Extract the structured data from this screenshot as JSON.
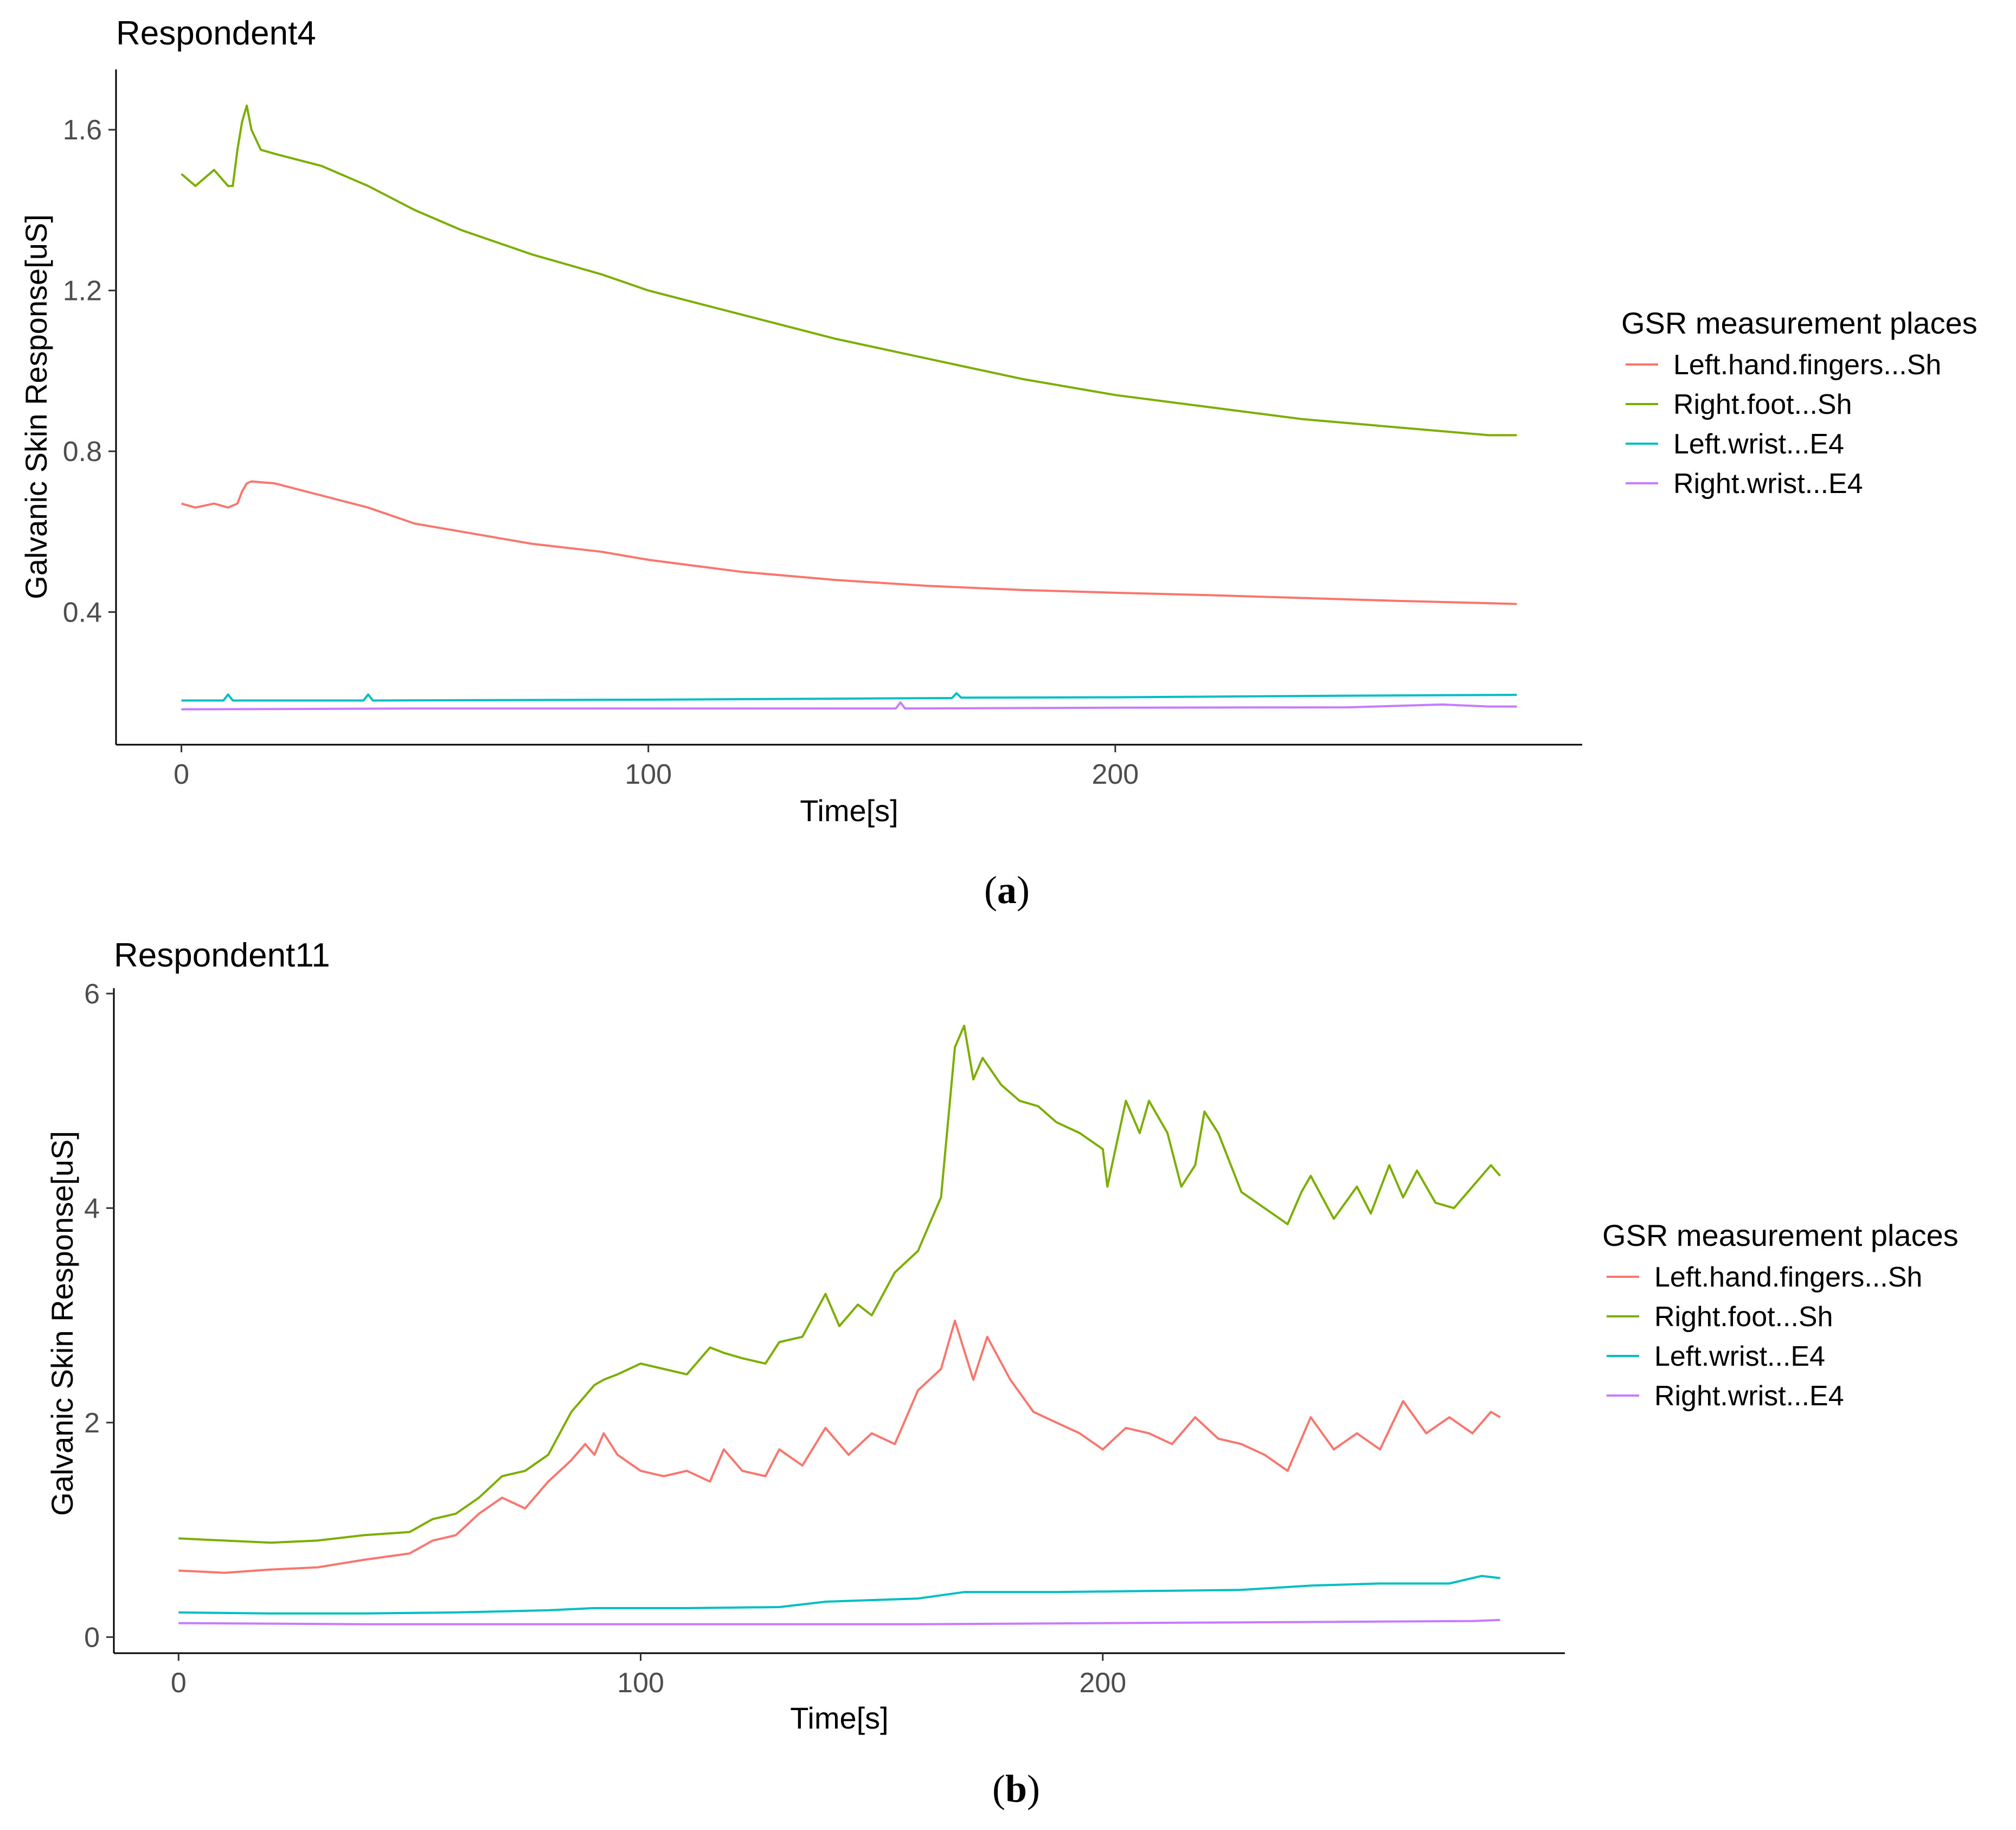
{
  "chart_data": [
    {
      "type": "line",
      "title": "Respondent4",
      "caption_letter": "a",
      "xlabel": "Time[s]",
      "ylabel": "Galvanic Skin Response[uS]",
      "xlim": [
        -14,
        300
      ],
      "ylim": [
        0.07,
        1.75
      ],
      "xticks": [
        0,
        100,
        200
      ],
      "xtick_labels": [
        "0",
        "100",
        "200"
      ],
      "yticks": [
        0.4,
        0.8,
        1.2,
        1.6
      ],
      "ytick_labels": [
        "0.4",
        "0.8",
        "1.2",
        "1.6"
      ],
      "grid": false,
      "legend_title": "GSR measurement places",
      "legend_position": "right",
      "series": [
        {
          "name": "Left.hand.fingers...Sh",
          "color": "#F8766D",
          "x": [
            0,
            3,
            7,
            10,
            12,
            13,
            14,
            15,
            20,
            30,
            40,
            50,
            60,
            75,
            90,
            100,
            120,
            140,
            160,
            180,
            200,
            220,
            240,
            260,
            280,
            286
          ],
          "y": [
            0.67,
            0.66,
            0.67,
            0.66,
            0.67,
            0.7,
            0.72,
            0.725,
            0.72,
            0.69,
            0.66,
            0.62,
            0.6,
            0.57,
            0.55,
            0.53,
            0.5,
            0.48,
            0.465,
            0.455,
            0.448,
            0.442,
            0.435,
            0.428,
            0.422,
            0.42
          ]
        },
        {
          "name": "Right.foot...Sh",
          "color": "#7CAE00",
          "x": [
            0,
            3,
            7,
            10,
            11,
            12,
            13,
            14,
            15,
            17,
            20,
            30,
            40,
            50,
            60,
            75,
            90,
            100,
            120,
            140,
            160,
            180,
            200,
            220,
            240,
            260,
            280,
            286
          ],
          "y": [
            1.49,
            1.46,
            1.5,
            1.46,
            1.46,
            1.55,
            1.62,
            1.66,
            1.6,
            1.55,
            1.54,
            1.51,
            1.46,
            1.4,
            1.35,
            1.29,
            1.24,
            1.2,
            1.14,
            1.08,
            1.03,
            0.98,
            0.94,
            0.91,
            0.88,
            0.86,
            0.84,
            0.84
          ]
        },
        {
          "name": "Left.wrist...E4",
          "color": "#00BFC4",
          "x": [
            0,
            9,
            10,
            11,
            39,
            40,
            41,
            100,
            165,
            166,
            167,
            200,
            250,
            286
          ],
          "y": [
            0.18,
            0.18,
            0.195,
            0.18,
            0.18,
            0.195,
            0.18,
            0.182,
            0.186,
            0.198,
            0.187,
            0.188,
            0.192,
            0.194
          ]
        },
        {
          "name": "Right.wrist...E4",
          "color": "#C77CFF",
          "x": [
            0,
            50,
            100,
            153,
            154,
            155,
            200,
            250,
            270,
            280,
            286
          ],
          "y": [
            0.158,
            0.16,
            0.16,
            0.16,
            0.175,
            0.16,
            0.162,
            0.163,
            0.17,
            0.165,
            0.165
          ]
        }
      ]
    },
    {
      "type": "line",
      "title": "Respondent11",
      "caption_letter": "b",
      "xlabel": "Time[s]",
      "ylabel": "Galvanic Skin Response[uS]",
      "xlim": [
        -14,
        300
      ],
      "ylim": [
        -0.15,
        6.05
      ],
      "xticks": [
        0,
        100,
        200
      ],
      "xtick_labels": [
        "0",
        "100",
        "200"
      ],
      "yticks": [
        0,
        2,
        4,
        6
      ],
      "ytick_labels": [
        "0",
        "2",
        "4",
        "6"
      ],
      "grid": false,
      "legend_title": "GSR measurement places",
      "legend_position": "right",
      "series": [
        {
          "name": "Left.hand.fingers...Sh",
          "color": "#F8766D",
          "x": [
            0,
            10,
            20,
            30,
            40,
            50,
            55,
            60,
            65,
            70,
            75,
            80,
            85,
            88,
            90,
            92,
            95,
            100,
            105,
            110,
            115,
            118,
            122,
            127,
            130,
            135,
            140,
            145,
            150,
            155,
            160,
            165,
            168,
            172,
            175,
            180,
            185,
            190,
            195,
            200,
            205,
            210,
            215,
            220,
            225,
            230,
            235,
            240,
            245,
            250,
            255,
            260,
            265,
            270,
            275,
            280,
            284,
            286
          ],
          "y": [
            0.62,
            0.6,
            0.63,
            0.65,
            0.72,
            0.78,
            0.9,
            0.95,
            1.15,
            1.3,
            1.2,
            1.45,
            1.65,
            1.8,
            1.7,
            1.9,
            1.7,
            1.55,
            1.5,
            1.55,
            1.45,
            1.75,
            1.55,
            1.5,
            1.75,
            1.6,
            1.95,
            1.7,
            1.9,
            1.8,
            2.3,
            2.5,
            2.95,
            2.4,
            2.8,
            2.4,
            2.1,
            2.0,
            1.9,
            1.75,
            1.95,
            1.9,
            1.8,
            2.05,
            1.85,
            1.8,
            1.7,
            1.55,
            2.05,
            1.75,
            1.9,
            1.75,
            2.2,
            1.9,
            2.05,
            1.9,
            2.1,
            2.05
          ]
        },
        {
          "name": "Right.foot...Sh",
          "color": "#7CAE00",
          "x": [
            0,
            10,
            20,
            30,
            40,
            50,
            55,
            60,
            65,
            70,
            75,
            80,
            85,
            88,
            90,
            92,
            95,
            100,
            105,
            110,
            115,
            118,
            122,
            127,
            130,
            135,
            140,
            143,
            147,
            150,
            155,
            160,
            163,
            165,
            168,
            170,
            172,
            174,
            178,
            182,
            186,
            190,
            195,
            200,
            201,
            203,
            205,
            208,
            210,
            214,
            217,
            220,
            222,
            225,
            230,
            235,
            240,
            243,
            245,
            250,
            255,
            258,
            262,
            265,
            268,
            272,
            276,
            280,
            284,
            286
          ],
          "y": [
            0.92,
            0.9,
            0.88,
            0.9,
            0.95,
            0.98,
            1.1,
            1.15,
            1.3,
            1.5,
            1.55,
            1.7,
            2.1,
            2.25,
            2.35,
            2.4,
            2.45,
            2.55,
            2.5,
            2.45,
            2.7,
            2.65,
            2.6,
            2.55,
            2.75,
            2.8,
            3.2,
            2.9,
            3.1,
            3.0,
            3.4,
            3.6,
            3.9,
            4.1,
            5.5,
            5.7,
            5.2,
            5.4,
            5.15,
            5.0,
            4.95,
            4.8,
            4.7,
            4.55,
            4.2,
            4.6,
            5.0,
            4.7,
            5.0,
            4.7,
            4.2,
            4.4,
            4.9,
            4.7,
            4.15,
            4.0,
            3.85,
            4.15,
            4.3,
            3.9,
            4.2,
            3.95,
            4.4,
            4.1,
            4.35,
            4.05,
            4.0,
            4.2,
            4.4,
            4.3
          ]
        },
        {
          "name": "Left.wrist...E4",
          "color": "#00BFC4",
          "x": [
            0,
            20,
            40,
            60,
            80,
            90,
            110,
            130,
            140,
            160,
            170,
            190,
            210,
            230,
            245,
            260,
            275,
            282,
            286
          ],
          "y": [
            0.23,
            0.22,
            0.22,
            0.23,
            0.25,
            0.27,
            0.27,
            0.28,
            0.33,
            0.36,
            0.42,
            0.42,
            0.43,
            0.44,
            0.48,
            0.5,
            0.5,
            0.57,
            0.55
          ]
        },
        {
          "name": "Right.wrist...E4",
          "color": "#C77CFF",
          "x": [
            0,
            40,
            80,
            120,
            160,
            200,
            240,
            280,
            286
          ],
          "y": [
            0.13,
            0.12,
            0.12,
            0.12,
            0.12,
            0.13,
            0.14,
            0.15,
            0.16
          ]
        }
      ]
    }
  ]
}
